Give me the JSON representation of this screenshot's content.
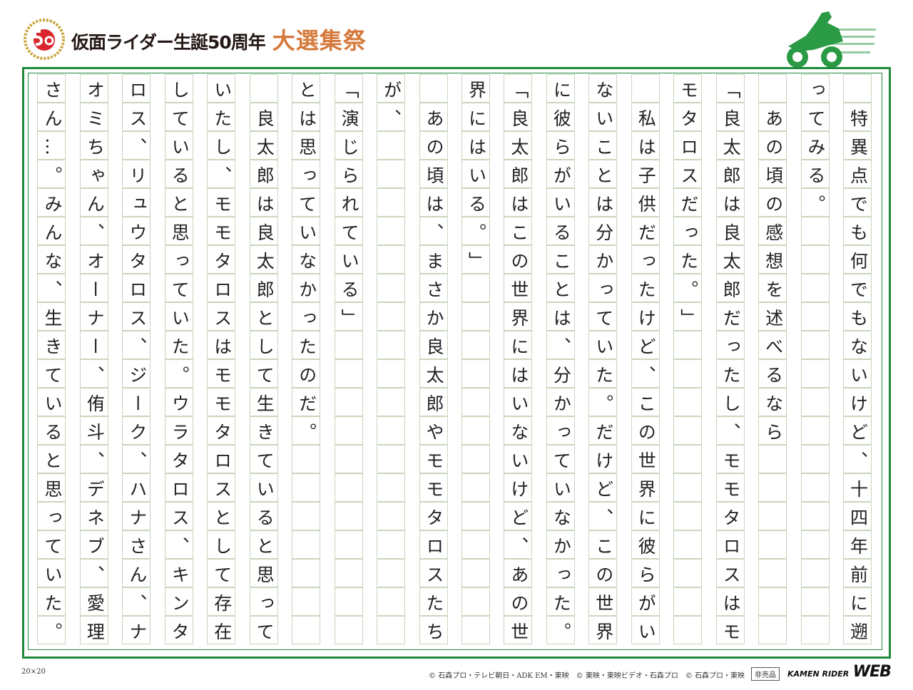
{
  "header": {
    "logo_text": "50th",
    "title": "仮面ライダー生誕50周年",
    "subtitle": "大選集祭"
  },
  "colors": {
    "frame": "#1f8a3b",
    "grid": "#c9d6bd",
    "subtitle": "#d57a3c"
  },
  "grid": {
    "size_label": "20×20",
    "columns": [
      " 特異点でも何でもないけど、十四年前に遡",
      "ってみる。               ",
      " あの頃の感想を述べるなら       ",
      "「良太郎は良太郎だったし、モモタロスはモ",
      "モタロスだった。」           ",
      " 私は子供だったけど、この世界に彼らがい",
      "ないことは分かっていた。だけど、この世界",
      "に彼らがいることは、分かっていなかった。",
      "「良太郎はこの世界にはいないけど、あの世",
      "界にはいる。」             ",
      " あの頃は、まさか良太郎やモモタロスたち",
      "が、                  ",
      "「演じられている」           ",
      "とは思っていなかったのだ。       ",
      " 良太郎は良太郎として生きていると思って",
      "いたし、モモタロスはモモタロスとして存在",
      "していると思っていた。ウラタロス、キンタ",
      "ロス、リュウタロス、ジーク、ハナさん、ナ",
      "オミちゃん、オーナー、侑斗、デネブ、愛理",
      "さん…。みんな、生きていると思っていた。"
    ]
  },
  "footer": {
    "copyright": "© 石森プロ・テレビ朝日・ADK EM・東映　© 東映・東映ビデオ・石森プロ　© 石森プロ・東映",
    "not_for_sale": "非売品",
    "brand_small": "KAMEN RIDER",
    "brand_big": "WEB"
  }
}
